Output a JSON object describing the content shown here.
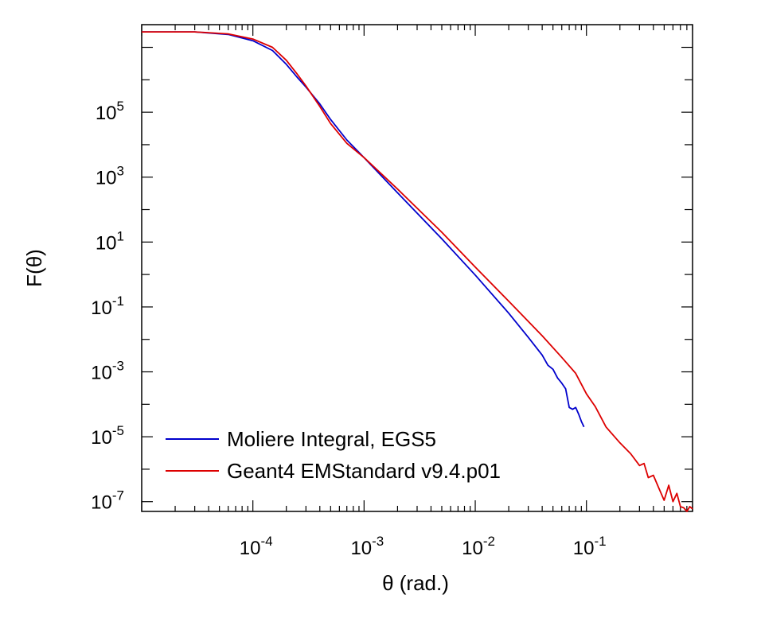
{
  "chart_data": {
    "type": "line",
    "title": "",
    "xlabel": "θ (rad.)",
    "ylabel": "F(θ)",
    "xscale": "log",
    "yscale": "log",
    "xlim": [
      1e-05,
      0.9
    ],
    "ylim": [
      5e-08,
      50000000
    ],
    "x_ticks": [
      {
        "value": 0.0001,
        "base": "10",
        "exp": "-4"
      },
      {
        "value": 0.001,
        "base": "10",
        "exp": "-3"
      },
      {
        "value": 0.01,
        "base": "10",
        "exp": "-2"
      },
      {
        "value": 0.1,
        "base": "10",
        "exp": "-1"
      }
    ],
    "y_ticks": [
      {
        "value": 100000,
        "base": "10",
        "exp": "5"
      },
      {
        "value": 1000,
        "base": "10",
        "exp": "3"
      },
      {
        "value": 10,
        "base": "10",
        "exp": "1"
      },
      {
        "value": 0.1,
        "base": "10",
        "exp": "-1"
      },
      {
        "value": 0.001,
        "base": "10",
        "exp": "-3"
      },
      {
        "value": 1e-05,
        "base": "10",
        "exp": "-5"
      },
      {
        "value": 1e-07,
        "base": "10",
        "exp": "-7"
      }
    ],
    "grid": false,
    "legend_position": "bottom-left",
    "series": [
      {
        "name": "Moliere Integral, EGS5",
        "color": "#0000cc",
        "x": [
          1e-05,
          3e-05,
          6e-05,
          0.0001,
          0.00015,
          0.0002,
          0.00025,
          0.0003,
          0.0004,
          0.0005,
          0.0007,
          0.001,
          0.002,
          0.005,
          0.01,
          0.02,
          0.03,
          0.04,
          0.045,
          0.05,
          0.055,
          0.06,
          0.065,
          0.07,
          0.075,
          0.08,
          0.085,
          0.09,
          0.095
        ],
        "y": [
          30000000,
          30000000,
          25000000,
          16000000,
          8000000,
          3000000,
          1200000,
          600000,
          180000,
          60000,
          14000,
          4000,
          330,
          12.6,
          0.96,
          0.064,
          0.0115,
          0.0033,
          0.0016,
          0.0012,
          0.00065,
          0.00045,
          0.0003,
          8e-05,
          7e-05,
          8e-05,
          5e-05,
          3e-05,
          2e-05
        ]
      },
      {
        "name": "Geant4 EMStandard v9.4.p01",
        "color": "#dd0000",
        "x": [
          1e-05,
          3e-05,
          6e-05,
          0.0001,
          0.00015,
          0.0002,
          0.00025,
          0.0003,
          0.0004,
          0.0005,
          0.0007,
          0.001,
          0.002,
          0.005,
          0.01,
          0.02,
          0.04,
          0.06,
          0.08,
          0.1,
          0.12,
          0.15,
          0.2,
          0.25,
          0.3,
          0.33,
          0.36,
          0.4,
          0.45,
          0.5,
          0.55,
          0.6,
          0.65,
          0.7,
          0.75,
          0.8,
          0.85,
          0.9
        ],
        "y": [
          30000000,
          30000000,
          26000000,
          18000000,
          10000000,
          4000000,
          1500000,
          650000,
          150000,
          45000,
          11000,
          4000,
          430,
          20,
          1.7,
          0.15,
          0.013,
          0.0028,
          0.0009,
          0.00021,
          8.5e-05,
          2e-05,
          6.5e-06,
          3e-06,
          1.3e-06,
          1.5e-06,
          5.5e-07,
          6.5e-07,
          2.5e-07,
          1.1e-07,
          3.2e-07,
          1e-07,
          1.8e-07,
          7e-08,
          6.5e-08,
          5e-08,
          7e-08,
          6e-08
        ]
      }
    ]
  }
}
